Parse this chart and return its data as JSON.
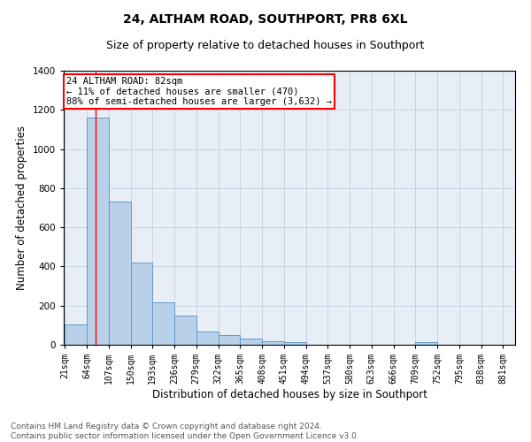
{
  "title": "24, ALTHAM ROAD, SOUTHPORT, PR8 6XL",
  "subtitle": "Size of property relative to detached houses in Southport",
  "xlabel": "Distribution of detached houses by size in Southport",
  "ylabel": "Number of detached properties",
  "footer_line1": "Contains HM Land Registry data © Crown copyright and database right 2024.",
  "footer_line2": "Contains public sector information licensed under the Open Government Licence v3.0.",
  "bins": [
    21,
    64,
    107,
    150,
    193,
    236,
    279,
    322,
    365,
    408,
    451,
    494,
    537,
    580,
    623,
    666,
    709,
    752,
    795,
    838,
    881
  ],
  "bar_heights": [
    105,
    1160,
    730,
    420,
    215,
    150,
    70,
    50,
    30,
    20,
    15,
    0,
    0,
    0,
    0,
    0,
    15,
    0,
    0,
    0
  ],
  "bar_color": "#b8d0e8",
  "bar_edge_color": "#6699cc",
  "tick_labels": [
    "21sqm",
    "64sqm",
    "107sqm",
    "150sqm",
    "193sqm",
    "236sqm",
    "279sqm",
    "322sqm",
    "365sqm",
    "408sqm",
    "451sqm",
    "494sqm",
    "537sqm",
    "580sqm",
    "623sqm",
    "666sqm",
    "709sqm",
    "752sqm",
    "795sqm",
    "838sqm",
    "881sqm"
  ],
  "ylim": [
    0,
    1400
  ],
  "red_line_x": 82,
  "annotation_text": "24 ALTHAM ROAD: 82sqm\n← 11% of detached houses are smaller (470)\n88% of semi-detached houses are larger (3,632) →",
  "grid_color": "#c8d4e4",
  "bg_color": "#e8eef6",
  "title_fontsize": 10,
  "subtitle_fontsize": 9,
  "label_fontsize": 8.5,
  "tick_fontsize": 7,
  "annotation_fontsize": 7.5,
  "footer_fontsize": 6.5
}
